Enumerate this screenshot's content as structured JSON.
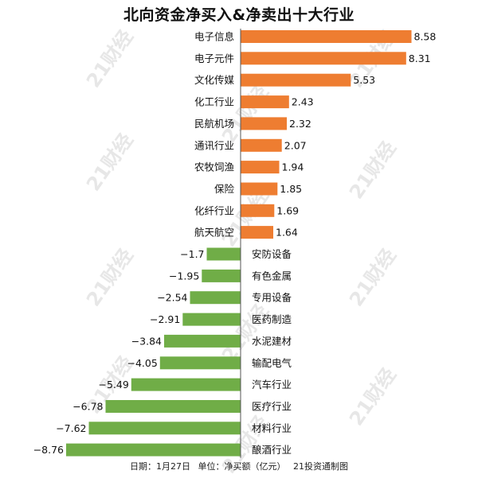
{
  "watermark": "21财经",
  "chart_data": {
    "type": "bar",
    "orientation": "horizontal",
    "title": "北向资金净买入&净卖出十大行业",
    "xlabel": "",
    "ylabel": "",
    "categories": [
      "电子信息",
      "电子元件",
      "文化传媒",
      "化工行业",
      "民航机场",
      "通讯行业",
      "农牧饲渔",
      "保险",
      "化纤行业",
      "航天航空",
      "安防设备",
      "有色金属",
      "专用设备",
      "医药制造",
      "水泥建材",
      "输配电气",
      "汽车行业",
      "医疗行业",
      "材料行业",
      "酿酒行业"
    ],
    "values": [
      8.58,
      8.31,
      5.53,
      2.43,
      2.32,
      2.07,
      1.94,
      1.85,
      1.69,
      1.64,
      -1.7,
      -1.95,
      -2.54,
      -2.91,
      -3.84,
      -4.05,
      -5.49,
      -6.78,
      -7.62,
      -8.76
    ],
    "value_labels": [
      "8.58",
      "8.31",
      "5.53",
      "2.43",
      "2.32",
      "2.07",
      "1.94",
      "1.85",
      "1.69",
      "1.64",
      "−1.7",
      "−1.95",
      "−2.54",
      "−2.91",
      "−3.84",
      "−4.05",
      "−5.49",
      "−6.78",
      "−7.62",
      "−8.76"
    ],
    "colors": {
      "positive": "#ee7d31",
      "negative": "#70ad47",
      "axis": "#555555"
    },
    "grid": false,
    "legend": "none"
  },
  "footer": {
    "date": "日期：1月27日",
    "unit": "单位：净买额（亿元）",
    "source": "21投资通制图"
  }
}
